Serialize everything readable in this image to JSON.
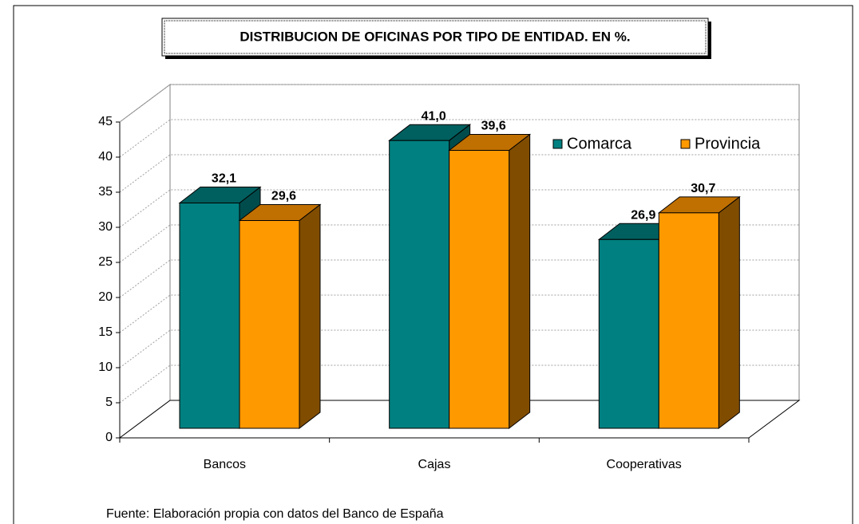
{
  "chart_data": {
    "type": "bar3d",
    "title": "DISTRIBUCION DE OFICINAS POR TIPO DE ENTIDAD. EN %.",
    "categories": [
      "Bancos",
      "Cajas",
      "Cooperativas"
    ],
    "series": [
      {
        "name": "Comarca",
        "color": "#008080",
        "values": [
          32.1,
          41.0,
          26.9
        ],
        "value_labels": [
          "32,1",
          "41,0",
          "26,9"
        ]
      },
      {
        "name": "Provincia",
        "color": "#ff9900",
        "values": [
          29.6,
          39.6,
          30.7
        ],
        "value_labels": [
          "29,6",
          "39,6",
          "30,7"
        ]
      }
    ],
    "ylim": [
      0,
      45
    ],
    "yticks": [
      0,
      5,
      10,
      15,
      20,
      25,
      30,
      35,
      40,
      45
    ],
    "grid": true,
    "source": "Fuente: Elaboración propia con datos del Banco de España"
  }
}
